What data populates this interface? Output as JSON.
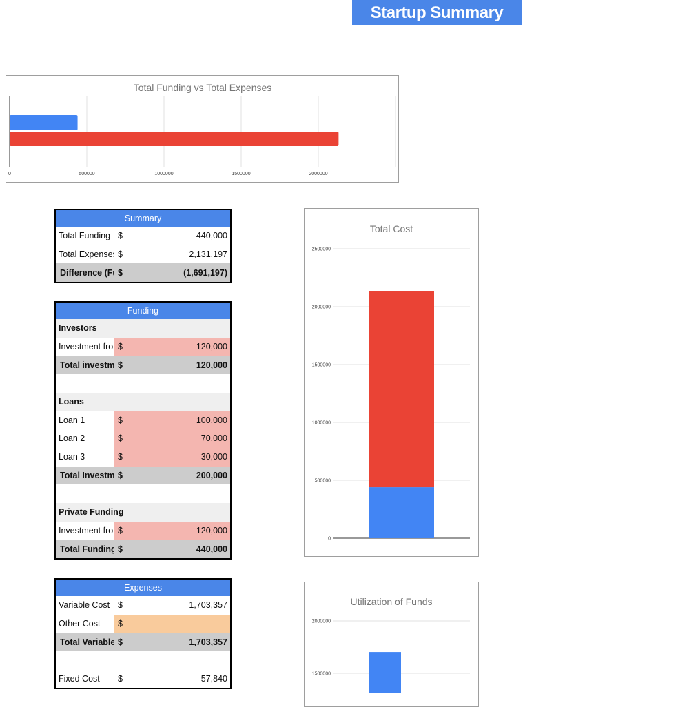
{
  "page": {
    "title": "Startup Summary"
  },
  "funding_vs_expenses": {
    "title": "Total Funding vs Total Expenses",
    "chart_data": {
      "type": "bar",
      "orientation": "horizontal",
      "title": "Total Funding vs Total Expenses",
      "series": [
        {
          "values": [
            440000
          ],
          "color": "#4285f4"
        },
        {
          "values": [
            2131197
          ],
          "color": "#ea4335"
        }
      ],
      "ticks": [
        "0",
        "500000",
        "1000000",
        "1500000",
        "2000000"
      ],
      "xlim": [
        0,
        2500000
      ],
      "grid": true
    }
  },
  "total_cost_chart": {
    "title": "Total Cost",
    "chart_data": {
      "type": "bar",
      "stacked": true,
      "title": "Total Cost",
      "series": [
        {
          "values": [
            440000
          ],
          "color": "#4285f4"
        },
        {
          "values": [
            1691197
          ],
          "color": "#ea4335"
        }
      ],
      "ticks": [
        "0",
        "500000",
        "1000000",
        "1500000",
        "2000000",
        "2500000"
      ],
      "ylim": [
        0,
        2500000
      ],
      "grid": true
    }
  },
  "utilization_chart": {
    "title": "Utilization of Funds",
    "chart_data": {
      "type": "bar",
      "title": "Utilization of Funds",
      "series": [
        {
          "values": [
            1703357
          ],
          "color": "#4285f4"
        }
      ],
      "ticks": [
        "1500000",
        "2000000"
      ],
      "grid": true
    }
  },
  "summary": {
    "header": "Summary",
    "rows": [
      {
        "label": "Total Funding",
        "dollar": "$",
        "value": "440,000"
      },
      {
        "label": "Total Expenses",
        "dollar": "$",
        "value": "2,131,197"
      }
    ],
    "total": {
      "label": "Difference (Funding - Expenses)",
      "dollar": "$",
      "value": "(1,691,197)"
    }
  },
  "funding": {
    "header": "Funding",
    "investors": {
      "section": "Investors",
      "row": {
        "label": "Investment from Investor",
        "dollar": "$",
        "value": "120,000"
      },
      "total": {
        "label": "Total investment from investor",
        "dollar": "$",
        "value": "120,000"
      }
    },
    "loans": {
      "section": "Loans",
      "rows": [
        {
          "label": "Loan 1",
          "dollar": "$",
          "value": "100,000"
        },
        {
          "label": "Loan 2",
          "dollar": "$",
          "value": "70,000"
        },
        {
          "label": "Loan 3",
          "dollar": "$",
          "value": "30,000"
        }
      ],
      "total": {
        "label": "Total Investment from Loan",
        "dollar": "$",
        "value": "200,000"
      }
    },
    "private": {
      "section": "Private Funding",
      "row": {
        "label": "Investment from Owner",
        "dollar": "$",
        "value": "120,000"
      },
      "total": {
        "label": "Total Funding",
        "dollar": "$",
        "value": "440,000"
      }
    }
  },
  "expenses": {
    "header": "Expenses",
    "rows": [
      {
        "label": "Variable Cost",
        "dollar": "$",
        "value": "1,703,357"
      },
      {
        "label": "Other Cost",
        "dollar": "$",
        "value": "-"
      }
    ],
    "total": {
      "label": "Total Variable Cost",
      "dollar": "$",
      "value": "1,703,357"
    },
    "fixed": {
      "label": "Fixed Cost",
      "dollar": "$",
      "value": "57,840"
    }
  }
}
